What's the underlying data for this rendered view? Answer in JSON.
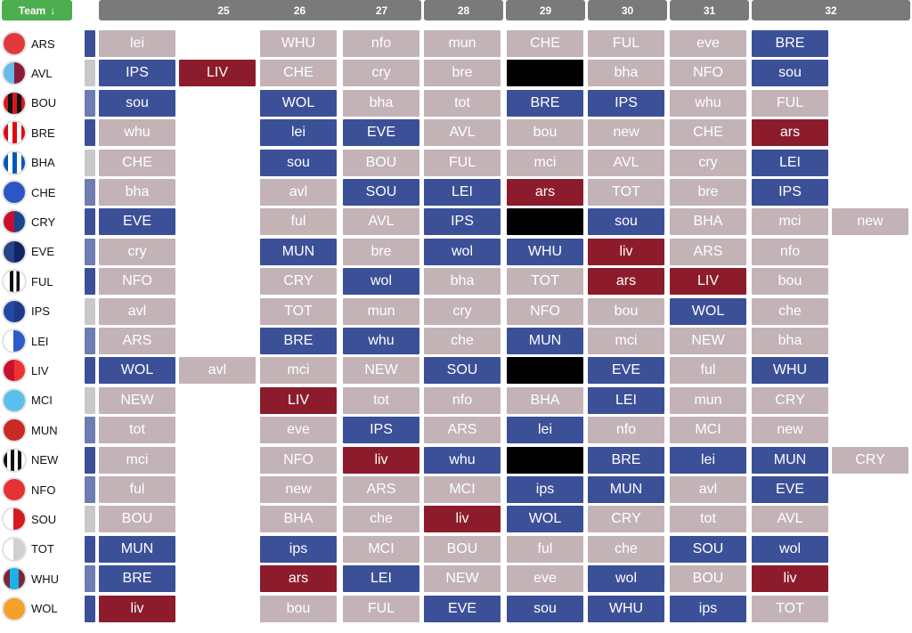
{
  "header": {
    "team_label": "Team",
    "sort_icon": "sort-descending-icon",
    "gameweeks": [
      "25",
      "26",
      "27",
      "28",
      "29",
      "30",
      "31",
      "32"
    ]
  },
  "colors": {
    "1": "#6d7cb1",
    "2": "#c9c9c9",
    "3": "#c3b3b6",
    "4": "#3c5098",
    "5": "#8c1c2c",
    "blank": "#000000"
  },
  "teams": [
    {
      "name": "ARS",
      "badge": "ars-badge-icon",
      "f": [
        [
          [
            "lei",
            3
          ]
        ],
        [
          [
            "WHU",
            3
          ]
        ],
        [
          [
            "nfo",
            3
          ]
        ],
        [
          [
            "mun",
            3
          ]
        ],
        [
          [
            "CHE",
            3
          ]
        ],
        [
          [
            "FUL",
            3
          ]
        ],
        [
          [
            "eve",
            3
          ]
        ],
        [
          [
            "BRE",
            4
          ]
        ]
      ]
    },
    {
      "name": "AVL",
      "badge": "avl-badge-icon",
      "f": [
        [
          [
            "IPS",
            4
          ],
          [
            "LIV",
            5
          ]
        ],
        [
          [
            "CHE",
            3
          ]
        ],
        [
          [
            "cry",
            3
          ]
        ],
        [
          [
            "bre",
            3
          ]
        ],
        [
          [
            "",
            6
          ]
        ],
        [
          [
            "bha",
            3
          ]
        ],
        [
          [
            "NFO",
            3
          ]
        ],
        [
          [
            "sou",
            4
          ]
        ]
      ]
    },
    {
      "name": "BOU",
      "badge": "bou-badge-icon",
      "f": [
        [
          [
            "sou",
            4
          ]
        ],
        [
          [
            "WOL",
            4
          ]
        ],
        [
          [
            "bha",
            3
          ]
        ],
        [
          [
            "tot",
            3
          ]
        ],
        [
          [
            "BRE",
            4
          ]
        ],
        [
          [
            "IPS",
            4
          ]
        ],
        [
          [
            "whu",
            3
          ]
        ],
        [
          [
            "FUL",
            3
          ]
        ]
      ]
    },
    {
      "name": "BRE",
      "badge": "bre-badge-icon",
      "f": [
        [
          [
            "whu",
            3
          ]
        ],
        [
          [
            "lei",
            4
          ]
        ],
        [
          [
            "EVE",
            4
          ]
        ],
        [
          [
            "AVL",
            3
          ]
        ],
        [
          [
            "bou",
            3
          ]
        ],
        [
          [
            "new",
            3
          ]
        ],
        [
          [
            "CHE",
            3
          ]
        ],
        [
          [
            "ars",
            5
          ]
        ]
      ]
    },
    {
      "name": "BHA",
      "badge": "bha-badge-icon",
      "f": [
        [
          [
            "CHE",
            3
          ]
        ],
        [
          [
            "sou",
            4
          ]
        ],
        [
          [
            "BOU",
            3
          ]
        ],
        [
          [
            "FUL",
            3
          ]
        ],
        [
          [
            "mci",
            3
          ]
        ],
        [
          [
            "AVL",
            3
          ]
        ],
        [
          [
            "cry",
            3
          ]
        ],
        [
          [
            "LEI",
            4
          ]
        ]
      ]
    },
    {
      "name": "CHE",
      "badge": "che-badge-icon",
      "f": [
        [
          [
            "bha",
            3
          ]
        ],
        [
          [
            "avl",
            3
          ]
        ],
        [
          [
            "SOU",
            4
          ]
        ],
        [
          [
            "LEI",
            4
          ]
        ],
        [
          [
            "ars",
            5
          ]
        ],
        [
          [
            "TOT",
            3
          ]
        ],
        [
          [
            "bre",
            3
          ]
        ],
        [
          [
            "IPS",
            4
          ]
        ]
      ]
    },
    {
      "name": "CRY",
      "badge": "cry-badge-icon",
      "f": [
        [
          [
            "EVE",
            4
          ]
        ],
        [
          [
            "ful",
            3
          ]
        ],
        [
          [
            "AVL",
            3
          ]
        ],
        [
          [
            "IPS",
            4
          ]
        ],
        [
          [
            "",
            6
          ]
        ],
        [
          [
            "sou",
            4
          ]
        ],
        [
          [
            "BHA",
            3
          ]
        ],
        [
          [
            "mci",
            3
          ],
          [
            "new",
            3
          ]
        ]
      ]
    },
    {
      "name": "EVE",
      "badge": "eve-badge-icon",
      "f": [
        [
          [
            "cry",
            3
          ]
        ],
        [
          [
            "MUN",
            4
          ]
        ],
        [
          [
            "bre",
            3
          ]
        ],
        [
          [
            "wol",
            4
          ]
        ],
        [
          [
            "WHU",
            4
          ]
        ],
        [
          [
            "liv",
            5
          ]
        ],
        [
          [
            "ARS",
            3
          ]
        ],
        [
          [
            "nfo",
            3
          ]
        ]
      ]
    },
    {
      "name": "FUL",
      "badge": "ful-badge-icon",
      "f": [
        [
          [
            "NFO",
            3
          ]
        ],
        [
          [
            "CRY",
            3
          ]
        ],
        [
          [
            "wol",
            4
          ]
        ],
        [
          [
            "bha",
            3
          ]
        ],
        [
          [
            "TOT",
            3
          ]
        ],
        [
          [
            "ars",
            5
          ]
        ],
        [
          [
            "LIV",
            5
          ]
        ],
        [
          [
            "bou",
            3
          ]
        ]
      ]
    },
    {
      "name": "IPS",
      "badge": "ips-badge-icon",
      "f": [
        [
          [
            "avl",
            3
          ]
        ],
        [
          [
            "TOT",
            3
          ]
        ],
        [
          [
            "mun",
            3
          ]
        ],
        [
          [
            "cry",
            3
          ]
        ],
        [
          [
            "NFO",
            3
          ]
        ],
        [
          [
            "bou",
            3
          ]
        ],
        [
          [
            "WOL",
            4
          ]
        ],
        [
          [
            "che",
            3
          ]
        ]
      ]
    },
    {
      "name": "LEI",
      "badge": "lei-badge-icon",
      "f": [
        [
          [
            "ARS",
            3
          ]
        ],
        [
          [
            "BRE",
            4
          ]
        ],
        [
          [
            "whu",
            4
          ]
        ],
        [
          [
            "che",
            3
          ]
        ],
        [
          [
            "MUN",
            4
          ]
        ],
        [
          [
            "mci",
            3
          ]
        ],
        [
          [
            "NEW",
            3
          ]
        ],
        [
          [
            "bha",
            3
          ]
        ]
      ]
    },
    {
      "name": "LIV",
      "badge": "liv-badge-icon",
      "f": [
        [
          [
            "WOL",
            4
          ],
          [
            "avl",
            3
          ]
        ],
        [
          [
            "mci",
            3
          ]
        ],
        [
          [
            "NEW",
            3
          ]
        ],
        [
          [
            "SOU",
            4
          ]
        ],
        [
          [
            "",
            6
          ]
        ],
        [
          [
            "EVE",
            4
          ]
        ],
        [
          [
            "ful",
            3
          ]
        ],
        [
          [
            "WHU",
            4
          ]
        ]
      ]
    },
    {
      "name": "MCI",
      "badge": "mci-badge-icon",
      "f": [
        [
          [
            "NEW",
            3
          ]
        ],
        [
          [
            "LIV",
            5
          ]
        ],
        [
          [
            "tot",
            3
          ]
        ],
        [
          [
            "nfo",
            3
          ]
        ],
        [
          [
            "BHA",
            3
          ]
        ],
        [
          [
            "LEI",
            4
          ]
        ],
        [
          [
            "mun",
            3
          ]
        ],
        [
          [
            "CRY",
            3
          ]
        ]
      ]
    },
    {
      "name": "MUN",
      "badge": "mun-badge-icon",
      "f": [
        [
          [
            "tot",
            3
          ]
        ],
        [
          [
            "eve",
            3
          ]
        ],
        [
          [
            "IPS",
            4
          ]
        ],
        [
          [
            "ARS",
            3
          ]
        ],
        [
          [
            "lei",
            4
          ]
        ],
        [
          [
            "nfo",
            3
          ]
        ],
        [
          [
            "MCI",
            3
          ]
        ],
        [
          [
            "new",
            3
          ]
        ]
      ]
    },
    {
      "name": "NEW",
      "badge": "new-badge-icon",
      "f": [
        [
          [
            "mci",
            3
          ]
        ],
        [
          [
            "NFO",
            3
          ]
        ],
        [
          [
            "liv",
            5
          ]
        ],
        [
          [
            "whu",
            4
          ]
        ],
        [
          [
            "",
            6
          ]
        ],
        [
          [
            "BRE",
            4
          ]
        ],
        [
          [
            "lei",
            4
          ]
        ],
        [
          [
            "MUN",
            4
          ],
          [
            "CRY",
            3
          ]
        ]
      ]
    },
    {
      "name": "NFO",
      "badge": "nfo-badge-icon",
      "f": [
        [
          [
            "ful",
            3
          ]
        ],
        [
          [
            "new",
            3
          ]
        ],
        [
          [
            "ARS",
            3
          ]
        ],
        [
          [
            "MCI",
            3
          ]
        ],
        [
          [
            "ips",
            4
          ]
        ],
        [
          [
            "MUN",
            4
          ]
        ],
        [
          [
            "avl",
            3
          ]
        ],
        [
          [
            "EVE",
            4
          ]
        ]
      ]
    },
    {
      "name": "SOU",
      "badge": "sou-badge-icon",
      "f": [
        [
          [
            "BOU",
            3
          ]
        ],
        [
          [
            "BHA",
            3
          ]
        ],
        [
          [
            "che",
            3
          ]
        ],
        [
          [
            "liv",
            5
          ]
        ],
        [
          [
            "WOL",
            4
          ]
        ],
        [
          [
            "CRY",
            3
          ]
        ],
        [
          [
            "tot",
            3
          ]
        ],
        [
          [
            "AVL",
            3
          ]
        ]
      ]
    },
    {
      "name": "TOT",
      "badge": "tot-badge-icon",
      "f": [
        [
          [
            "MUN",
            4
          ]
        ],
        [
          [
            "ips",
            4
          ]
        ],
        [
          [
            "MCI",
            3
          ]
        ],
        [
          [
            "BOU",
            3
          ]
        ],
        [
          [
            "ful",
            3
          ]
        ],
        [
          [
            "che",
            3
          ]
        ],
        [
          [
            "SOU",
            4
          ]
        ],
        [
          [
            "wol",
            4
          ]
        ]
      ]
    },
    {
      "name": "WHU",
      "badge": "whu-badge-icon",
      "f": [
        [
          [
            "BRE",
            4
          ]
        ],
        [
          [
            "ars",
            5
          ]
        ],
        [
          [
            "LEI",
            4
          ]
        ],
        [
          [
            "NEW",
            3
          ]
        ],
        [
          [
            "eve",
            3
          ]
        ],
        [
          [
            "wol",
            4
          ]
        ],
        [
          [
            "BOU",
            3
          ]
        ],
        [
          [
            "liv",
            5
          ]
        ]
      ]
    },
    {
      "name": "WOL",
      "badge": "wol-badge-icon",
      "f": [
        [
          [
            "liv",
            5
          ]
        ],
        [
          [
            "bou",
            3
          ]
        ],
        [
          [
            "FUL",
            3
          ]
        ],
        [
          [
            "EVE",
            4
          ]
        ],
        [
          [
            "sou",
            4
          ]
        ],
        [
          [
            "WHU",
            4
          ]
        ],
        [
          [
            "ips",
            4
          ]
        ],
        [
          [
            "TOT",
            3
          ]
        ]
      ]
    }
  ]
}
